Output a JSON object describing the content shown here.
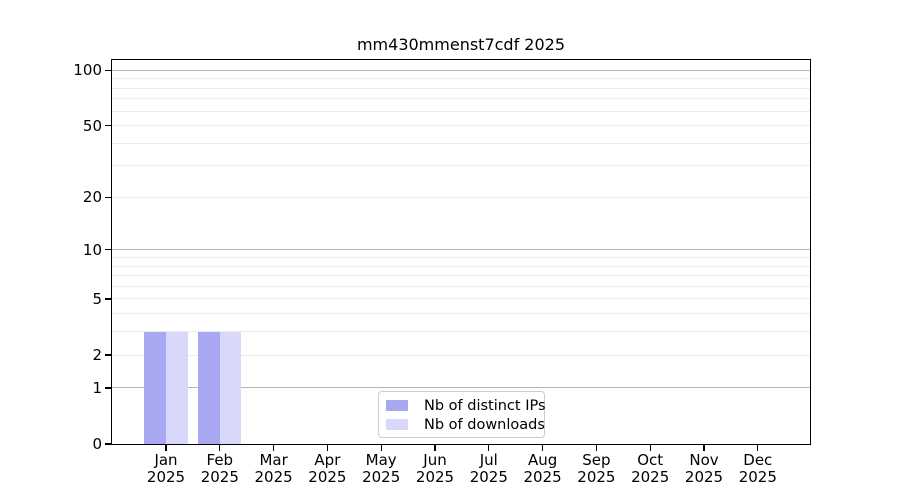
{
  "chart_data": {
    "type": "bar",
    "title": "mm430mmenst7cdf 2025",
    "categories": [
      "Jan",
      "Feb",
      "Mar",
      "Apr",
      "May",
      "Jun",
      "Jul",
      "Aug",
      "Sep",
      "Oct",
      "Nov",
      "Dec"
    ],
    "x_year_label": "2025",
    "series": [
      {
        "name": "Nb of distinct IPs",
        "color": "#a8a8f2",
        "values": [
          3,
          3,
          0,
          0,
          0,
          0,
          0,
          0,
          0,
          0,
          0,
          0
        ]
      },
      {
        "name": "Nb of downloads",
        "color": "#d8d8fa",
        "values": [
          3,
          3,
          0,
          0,
          0,
          0,
          0,
          0,
          0,
          0,
          0,
          0
        ]
      }
    ],
    "xlabel": "",
    "ylabel": "",
    "yscale": "log1p",
    "y_ticks": [
      0,
      1,
      2,
      5,
      10,
      20,
      50,
      100
    ],
    "y_major_gridlines": [
      1,
      10,
      100
    ],
    "y_minor_gridlines": [
      2,
      3,
      4,
      5,
      6,
      7,
      8,
      9,
      20,
      30,
      40,
      50,
      60,
      70,
      80,
      90
    ],
    "ylim": [
      0,
      113.7
    ],
    "grid": true,
    "legend": {
      "position": "lower center",
      "entries": [
        "Nb of distinct IPs",
        "Nb of downloads"
      ]
    },
    "colors": {
      "bar_distinct_ips": "#a8a8f2",
      "bar_downloads": "#d8d8fa",
      "major_grid": "#b5b5b5",
      "minor_grid": "#ececec",
      "axis": "#000000",
      "legend_border": "#cccccc",
      "background": "#ffffff"
    }
  }
}
